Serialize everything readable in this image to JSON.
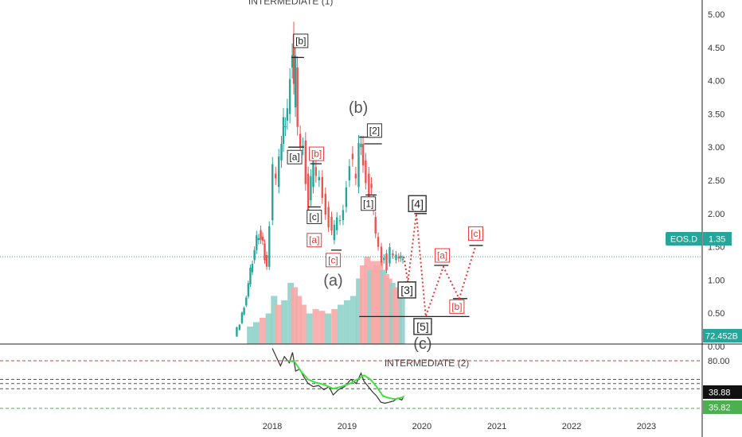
{
  "chart_data": {
    "type": "candlestick",
    "symbol_tag": "EOS.D",
    "last_price_label": "1.35",
    "last_price": 1.35,
    "volume_label": "72.452B",
    "price_axis": {
      "ticks": [
        "5.00",
        "4.50",
        "4.00",
        "3.50",
        "3.00",
        "2.50",
        "2.00",
        "1.50",
        "1.00",
        "0.50",
        "0.00"
      ],
      "ylim": [
        0,
        5.2
      ]
    },
    "x_axis": {
      "ticks": [
        "2018",
        "2019",
        "2020",
        "2021",
        "2022",
        "2023"
      ]
    },
    "price_series": [
      {
        "x": "2017-07-05",
        "y": 0.15
      },
      {
        "x": "2017-08-01",
        "y": 0.35
      },
      {
        "x": "2017-09-01",
        "y": 0.75
      },
      {
        "x": "2017-10-01",
        "y": 1.3
      },
      {
        "x": "2017-11-01",
        "y": 1.75
      },
      {
        "x": "2017-11-20",
        "y": 1.55
      },
      {
        "x": "2017-12-10",
        "y": 1.2
      },
      {
        "x": "2017-12-25",
        "y": 1.9
      },
      {
        "x": "2018-01-10",
        "y": 2.6
      },
      {
        "x": "2018-01-25",
        "y": 2.4
      },
      {
        "x": "2018-02-10",
        "y": 2.8
      },
      {
        "x": "2018-03-01",
        "y": 3.3
      },
      {
        "x": "2018-03-20",
        "y": 3.5
      },
      {
        "x": "2018-04-05",
        "y": 4.2
      },
      {
        "x": "2018-04-12",
        "y": 4.7
      },
      {
        "x": "2018-04-20",
        "y": 3.6
      },
      {
        "x": "2018-04-28",
        "y": 4.2
      },
      {
        "x": "2018-05-10",
        "y": 3.2
      },
      {
        "x": "2018-05-25",
        "y": 3.0
      },
      {
        "x": "2018-06-05",
        "y": 3.1
      },
      {
        "x": "2018-06-20",
        "y": 2.6
      },
      {
        "x": "2018-07-01",
        "y": 2.2
      },
      {
        "x": "2018-07-15",
        "y": 2.4
      },
      {
        "x": "2018-07-25",
        "y": 2.7
      },
      {
        "x": "2018-08-10",
        "y": 2.5
      },
      {
        "x": "2018-08-25",
        "y": 2.55
      },
      {
        "x": "2018-09-10",
        "y": 2.3
      },
      {
        "x": "2018-09-25",
        "y": 2.1
      },
      {
        "x": "2018-10-10",
        "y": 1.95
      },
      {
        "x": "2018-10-25",
        "y": 1.6
      },
      {
        "x": "2018-11-05",
        "y": 1.75
      },
      {
        "x": "2018-11-20",
        "y": 1.9
      },
      {
        "x": "2018-12-05",
        "y": 1.9
      },
      {
        "x": "2018-12-20",
        "y": 2.1
      },
      {
        "x": "2019-01-05",
        "y": 2.5
      },
      {
        "x": "2019-01-20",
        "y": 2.9
      },
      {
        "x": "2019-02-05",
        "y": 2.6
      },
      {
        "x": "2019-02-20",
        "y": 2.4
      },
      {
        "x": "2019-03-05",
        "y": 3.0
      },
      {
        "x": "2019-03-15",
        "y": 3.05
      },
      {
        "x": "2019-03-25",
        "y": 2.8
      },
      {
        "x": "2019-04-10",
        "y": 2.6
      },
      {
        "x": "2019-04-25",
        "y": 2.45
      },
      {
        "x": "2019-05-05",
        "y": 2.2
      },
      {
        "x": "2019-05-15",
        "y": 1.95
      },
      {
        "x": "2019-05-25",
        "y": 1.65
      },
      {
        "x": "2019-06-10",
        "y": 1.5
      },
      {
        "x": "2019-06-25",
        "y": 1.3
      },
      {
        "x": "2019-07-05",
        "y": 1.4
      },
      {
        "x": "2019-07-20",
        "y": 1.25
      },
      {
        "x": "2019-08-05",
        "y": 1.4
      },
      {
        "x": "2019-08-20",
        "y": 1.3
      },
      {
        "x": "2019-09-05",
        "y": 1.35
      },
      {
        "x": "2019-09-25",
        "y": 1.3
      },
      {
        "x": "2019-10-05",
        "y": 1.35
      }
    ],
    "volume_bars": [
      {
        "x": "2017-09-15",
        "v": 0.2,
        "up": true
      },
      {
        "x": "2017-10-15",
        "v": 0.25,
        "up": true
      },
      {
        "x": "2017-11-15",
        "v": 0.3,
        "up": false
      },
      {
        "x": "2017-12-15",
        "v": 0.35,
        "up": true
      },
      {
        "x": "2018-01-10",
        "v": 0.55,
        "up": true
      },
      {
        "x": "2018-02-01",
        "v": 0.45,
        "up": false
      },
      {
        "x": "2018-03-01",
        "v": 0.5,
        "up": true
      },
      {
        "x": "2018-04-01",
        "v": 0.7,
        "up": true
      },
      {
        "x": "2018-04-20",
        "v": 0.65,
        "up": false
      },
      {
        "x": "2018-05-10",
        "v": 0.55,
        "up": false
      },
      {
        "x": "2018-06-01",
        "v": 0.45,
        "up": false
      },
      {
        "x": "2018-07-01",
        "v": 0.35,
        "up": true
      },
      {
        "x": "2018-08-01",
        "v": 0.4,
        "up": false
      },
      {
        "x": "2018-09-01",
        "v": 0.38,
        "up": false
      },
      {
        "x": "2018-10-01",
        "v": 0.35,
        "up": true
      },
      {
        "x": "2018-11-01",
        "v": 0.4,
        "up": false
      },
      {
        "x": "2018-12-01",
        "v": 0.45,
        "up": true
      },
      {
        "x": "2019-01-01",
        "v": 0.5,
        "up": true
      },
      {
        "x": "2019-02-01",
        "v": 0.55,
        "up": true
      },
      {
        "x": "2019-03-01",
        "v": 0.75,
        "up": true
      },
      {
        "x": "2019-03-20",
        "v": 0.9,
        "up": false
      },
      {
        "x": "2019-04-10",
        "v": 1.0,
        "up": false
      },
      {
        "x": "2019-04-25",
        "v": 0.85,
        "up": true
      },
      {
        "x": "2019-05-10",
        "v": 0.95,
        "up": false
      },
      {
        "x": "2019-05-25",
        "v": 0.9,
        "up": false
      },
      {
        "x": "2019-06-10",
        "v": 0.95,
        "up": false
      },
      {
        "x": "2019-06-25",
        "v": 0.85,
        "up": true
      },
      {
        "x": "2019-07-10",
        "v": 0.8,
        "up": false
      },
      {
        "x": "2019-07-25",
        "v": 0.75,
        "up": false
      },
      {
        "x": "2019-08-10",
        "v": 0.7,
        "up": true
      },
      {
        "x": "2019-08-25",
        "v": 0.65,
        "up": false
      },
      {
        "x": "2019-09-10",
        "v": 0.6,
        "up": false
      },
      {
        "x": "2019-09-25",
        "v": 0.55,
        "up": true
      }
    ],
    "projection_path": [
      {
        "x": "2019-10-05",
        "y": 1.35
      },
      {
        "x": "2019-10-25",
        "y": 0.97
      },
      {
        "x": "2019-12-05",
        "y": 2.0
      },
      {
        "x": "2020-01-20",
        "y": 0.45
      },
      {
        "x": "2020-04-15",
        "y": 1.2
      },
      {
        "x": "2020-07-01",
        "y": 0.72
      },
      {
        "x": "2020-09-20",
        "y": 1.52
      }
    ],
    "levels": [
      {
        "x1": "2018-04-05",
        "x2": "2018-06-05",
        "y": 4.35
      },
      {
        "x1": "2018-03-20",
        "x2": "2018-06-05",
        "y": 3.0
      },
      {
        "x1": "2018-07-05",
        "x2": "2018-08-30",
        "y": 2.75
      },
      {
        "x1": "2018-06-25",
        "x2": "2018-08-25",
        "y": 2.1
      },
      {
        "x1": "2018-10-15",
        "x2": "2018-12-05",
        "y": 1.45
      },
      {
        "x1": "2019-03-01",
        "x2": "2019-06-15",
        "y": 3.15
      },
      {
        "x1": "2019-03-25",
        "x2": "2019-06-20",
        "y": 3.05
      },
      {
        "x1": "2019-04-01",
        "x2": "2019-05-25",
        "y": 2.28
      },
      {
        "x1": "2019-10-05",
        "x2": "2019-12-05",
        "y": 0.97
      },
      {
        "x1": "2019-11-25",
        "x2": "2020-01-25",
        "y": 2.0
      },
      {
        "x1": "2019-03-01",
        "x2": "2020-08-20",
        "y": 0.45
      },
      {
        "x1": "2020-03-01",
        "x2": "2020-05-10",
        "y": 1.22
      },
      {
        "x1": "2020-06-01",
        "x2": "2020-08-10",
        "y": 0.72
      },
      {
        "x1": "2020-08-20",
        "x2": "2020-10-25",
        "y": 1.52
      }
    ],
    "annotations": [
      {
        "text": "INTERMEDIATE (1)",
        "x": "2018-04-01",
        "y": 5.2,
        "style": "plain"
      },
      {
        "text": "[b]",
        "x": "2018-05-20",
        "y": 4.6,
        "style": "box-black"
      },
      {
        "text": "[a]",
        "x": "2018-04-20",
        "y": 2.85,
        "style": "box-black"
      },
      {
        "text": "[b]",
        "x": "2018-08-05",
        "y": 2.9,
        "style": "box-red"
      },
      {
        "text": "[c]",
        "x": "2018-07-25",
        "y": 1.95,
        "style": "box-black"
      },
      {
        "text": "[a]",
        "x": "2018-07-25",
        "y": 1.6,
        "style": "box-red"
      },
      {
        "text": "[c]",
        "x": "2018-10-25",
        "y": 1.3,
        "style": "box-red"
      },
      {
        "text": "(a)",
        "x": "2018-10-25",
        "y": 1.0,
        "style": "big"
      },
      {
        "text": "(b)",
        "x": "2019-02-25",
        "y": 3.6,
        "style": "big"
      },
      {
        "text": "[2]",
        "x": "2019-05-15",
        "y": 3.25,
        "style": "box-black"
      },
      {
        "text": "[1]",
        "x": "2019-04-15",
        "y": 2.15,
        "style": "box-black"
      },
      {
        "text": "[4]",
        "x": "2019-12-10",
        "y": 2.15,
        "style": "box-black-lg"
      },
      {
        "text": "[3]",
        "x": "2019-10-20",
        "y": 0.85,
        "style": "box-black-lg"
      },
      {
        "text": "[5]",
        "x": "2020-01-05",
        "y": 0.3,
        "style": "box-black-lg"
      },
      {
        "text": "(c)",
        "x": "2020-01-05",
        "y": 0.05,
        "style": "big"
      },
      {
        "text": "[a]",
        "x": "2020-04-10",
        "y": 1.37,
        "style": "box-red"
      },
      {
        "text": "[b]",
        "x": "2020-06-20",
        "y": 0.6,
        "style": "box-red"
      },
      {
        "text": "[c]",
        "x": "2020-09-20",
        "y": 1.7,
        "style": "box-red"
      },
      {
        "text": "INTERMEDIATE (2)",
        "x": "2020-01-25",
        "y": -0.25,
        "style": "plain"
      }
    ],
    "oscillator": {
      "axis_tick": "80.00",
      "ylim": [
        25,
        100
      ],
      "value_label_top": "38.88",
      "value_label_bottom": "35.82",
      "red_level": 80,
      "gray_levels": [
        62,
        58,
        53
      ],
      "green_level": 34,
      "line": [
        {
          "x": "2018-01-01",
          "y": 92
        },
        {
          "x": "2018-02-10",
          "y": 75
        },
        {
          "x": "2018-03-01",
          "y": 84
        },
        {
          "x": "2018-03-25",
          "y": 78
        },
        {
          "x": "2018-04-10",
          "y": 88
        },
        {
          "x": "2018-04-25",
          "y": 70
        },
        {
          "x": "2018-05-15",
          "y": 72
        },
        {
          "x": "2018-06-05",
          "y": 64
        },
        {
          "x": "2018-06-25",
          "y": 58
        },
        {
          "x": "2018-07-20",
          "y": 55
        },
        {
          "x": "2018-08-15",
          "y": 56
        },
        {
          "x": "2018-09-10",
          "y": 52
        },
        {
          "x": "2018-10-05",
          "y": 55
        },
        {
          "x": "2018-10-25",
          "y": 47
        },
        {
          "x": "2018-11-20",
          "y": 52
        },
        {
          "x": "2018-12-20",
          "y": 55
        },
        {
          "x": "2019-01-20",
          "y": 62
        },
        {
          "x": "2019-02-15",
          "y": 58
        },
        {
          "x": "2019-03-10",
          "y": 68
        },
        {
          "x": "2019-03-25",
          "y": 60
        },
        {
          "x": "2019-04-15",
          "y": 55
        },
        {
          "x": "2019-05-05",
          "y": 50
        },
        {
          "x": "2019-05-25",
          "y": 46
        },
        {
          "x": "2019-06-15",
          "y": 40
        },
        {
          "x": "2019-07-05",
          "y": 39
        },
        {
          "x": "2019-07-25",
          "y": 40
        },
        {
          "x": "2019-08-15",
          "y": 41
        },
        {
          "x": "2019-09-05",
          "y": 44
        },
        {
          "x": "2019-09-25",
          "y": 42
        },
        {
          "x": "2019-10-05",
          "y": 46
        }
      ],
      "signal": [
        {
          "x": "2018-03-15",
          "y": 80
        },
        {
          "x": "2018-04-20",
          "y": 79
        },
        {
          "x": "2018-05-20",
          "y": 70
        },
        {
          "x": "2018-06-25",
          "y": 62
        },
        {
          "x": "2018-07-30",
          "y": 59
        },
        {
          "x": "2018-09-10",
          "y": 57
        },
        {
          "x": "2018-10-25",
          "y": 53
        },
        {
          "x": "2018-12-05",
          "y": 55
        },
        {
          "x": "2019-01-15",
          "y": 58
        },
        {
          "x": "2019-02-20",
          "y": 62
        },
        {
          "x": "2019-03-25",
          "y": 66
        },
        {
          "x": "2019-04-25",
          "y": 62
        },
        {
          "x": "2019-05-25",
          "y": 55
        },
        {
          "x": "2019-06-25",
          "y": 46
        },
        {
          "x": "2019-07-25",
          "y": 44
        },
        {
          "x": "2019-08-25",
          "y": 43
        },
        {
          "x": "2019-10-05",
          "y": 45
        }
      ]
    },
    "colors": {
      "up": "#26a69a",
      "down": "#ef5350",
      "volume_up": "#8fd1c9",
      "volume_down": "#f7a9a7",
      "price_line": "#26a69a",
      "projection": "#e53935",
      "osc_line": "#333333",
      "osc_signal": "#3ee23e",
      "osc_red": "#e53935",
      "osc_green": "#4caf50",
      "label_bg": "#26a69a"
    }
  }
}
